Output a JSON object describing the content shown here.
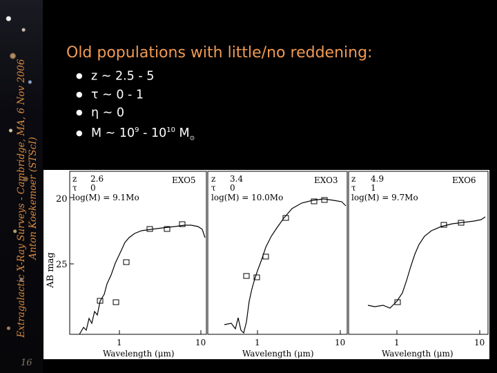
{
  "sidebar": {
    "credit_line1": "Extragalactic X-Ray Surveys - Cambridge, MA, 6 Nov 2006",
    "credit_line2": "Anton Koekemoer (STScI)",
    "page_number": "16"
  },
  "slide": {
    "title": "Old populations with little/no reddening:",
    "bullets": [
      {
        "text": "z ~ 2.5 - 5"
      },
      {
        "text": "τ ~ 0 - 1"
      },
      {
        "text": "η ~ 0"
      },
      {
        "pre": "M ~ 10",
        "sup1": "9",
        "mid": " - 10",
        "sup2": "10",
        "post": " M",
        "sub": "⊙"
      }
    ]
  },
  "figure": {
    "ylabel": "AB mag",
    "ytick_20": "20",
    "ytick_25": "25",
    "panels": [
      {
        "name": "EXO5",
        "z_label": "z",
        "z": "2.6",
        "tau_label": "τ",
        "tau": "0",
        "mass": "log(M) = 9.1Mo",
        "xtick1": "1",
        "xtick2": "10",
        "xlabel": "Wavelength (μm)"
      },
      {
        "name": "EXO3",
        "z_label": "z",
        "z": "3.4",
        "tau_label": "τ",
        "tau": "0",
        "mass": "log(M) = 10.0Mo",
        "xtick1": "1",
        "xtick2": "10",
        "xlabel": "Wavelength (μm)"
      },
      {
        "name": "EXO6",
        "z_label": "z",
        "z": "4.9",
        "tau_label": "τ",
        "tau": "1",
        "mass": "log(M) = 9.7Mo",
        "xtick1": "1",
        "xtick2": "10",
        "xlabel": "Wavelength (μm)"
      }
    ]
  }
}
